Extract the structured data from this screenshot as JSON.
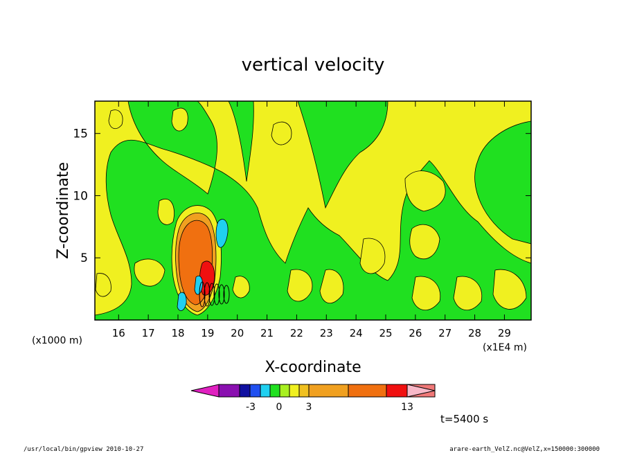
{
  "chart_data": {
    "type": "heatmap",
    "title": "vertical velocity",
    "xlabel": "X-coordinate",
    "ylabel": "Z-coordinate",
    "x_unit_left": "(x1000 m)",
    "x_unit_right": "(x1E4 m)",
    "xlim": [
      15.2,
      29.9
    ],
    "ylim": [
      0,
      17.6
    ],
    "x_ticks": [
      16,
      17,
      18,
      19,
      20,
      21,
      22,
      23,
      24,
      25,
      26,
      27,
      28,
      29
    ],
    "x_tick_labels": [
      "16",
      "17",
      "18",
      "19",
      "20",
      "21",
      "22",
      "23",
      "24",
      "25",
      "26",
      "27",
      "28",
      "29"
    ],
    "y_ticks": [
      5,
      10,
      15
    ],
    "y_tick_labels": [
      "5",
      "10",
      "15"
    ],
    "time_label": "t=5400 s",
    "colorbar": {
      "levels": [
        -3,
        0,
        3,
        13
      ],
      "level_labels": [
        "-3",
        "0",
        "3",
        "13"
      ],
      "colors": [
        "#e020c0",
        "#8a10b0",
        "#1010a0",
        "#2050f0",
        "#20d0f0",
        "#20e020",
        "#a8f020",
        "#f0f020",
        "#f0c020",
        "#f0a020",
        "#f07010",
        "#f01010",
        "#f07878",
        "#f8b8c8"
      ]
    },
    "features": [
      {
        "name": "updraft core",
        "x": 18.6,
        "z": 5.0,
        "w_max": 13
      },
      {
        "name": "downdraft",
        "x": 19.5,
        "z": 7.0,
        "w_min": -3
      }
    ]
  },
  "footer": {
    "left": "/usr/local/bin/gpview  2010-10-27",
    "right": "arare-earth_VelZ.nc@VelZ,x=150000:300000"
  },
  "colors": {
    "yellow": "#f0f020",
    "green": "#20e020",
    "orange": "#f07010",
    "red": "#f01010",
    "cyan": "#20d0f0"
  }
}
